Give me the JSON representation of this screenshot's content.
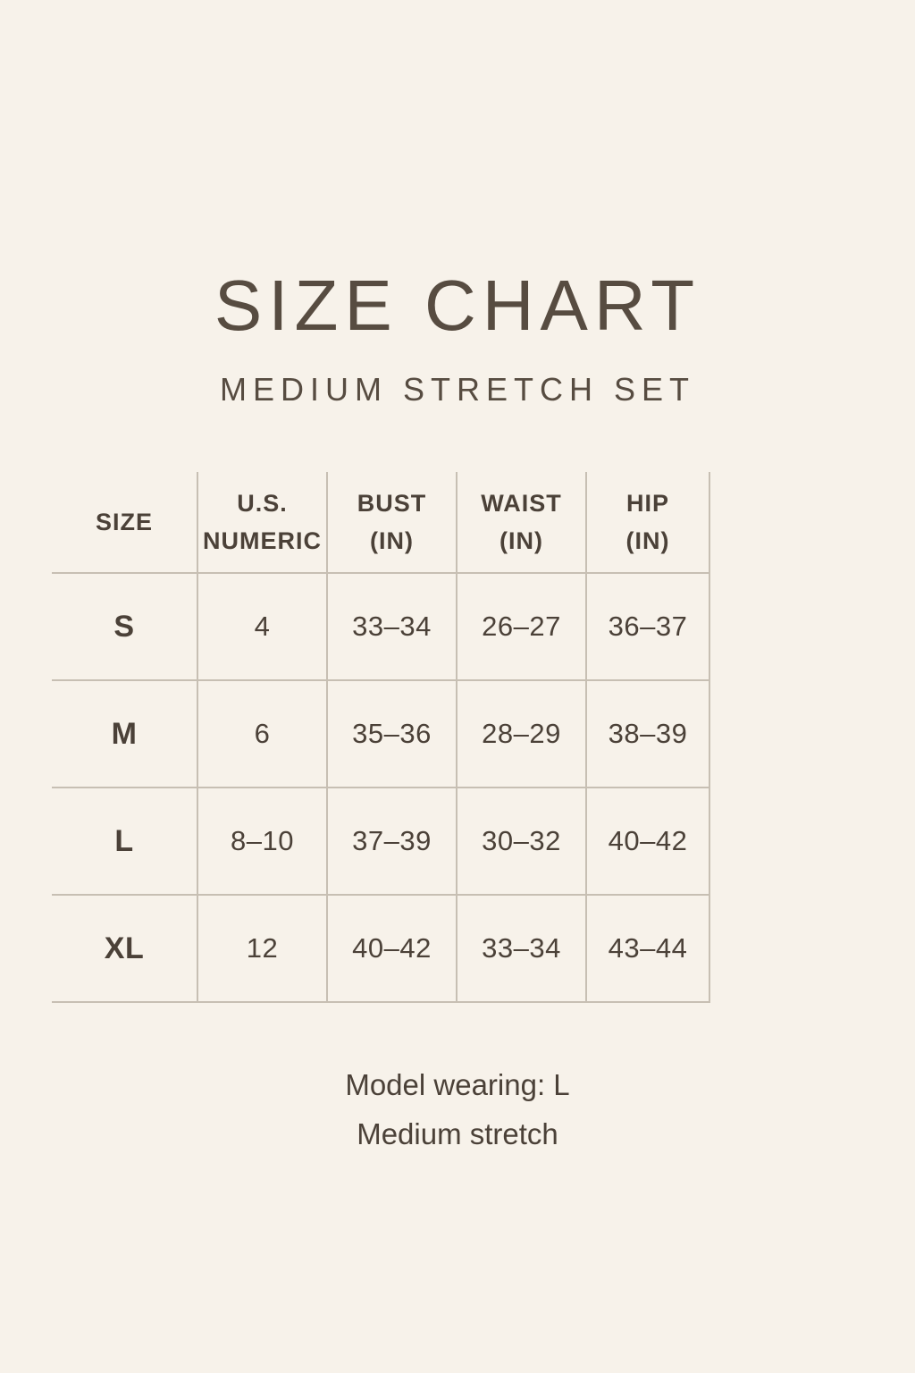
{
  "page": {
    "background_color": "#f7f2ea",
    "text_color": "#4b4138",
    "line_color": "#c7bfb3"
  },
  "header": {
    "title": "SIZE CHART",
    "subtitle": "MEDIUM STRETCH SET"
  },
  "table": {
    "columns": [
      {
        "label": "SIZE",
        "sub": ""
      },
      {
        "label": "U.S.",
        "sub": "NUMERIC"
      },
      {
        "label": "BUST",
        "sub": "(IN)"
      },
      {
        "label": "WAIST",
        "sub": "(IN)"
      },
      {
        "label": "HIP",
        "sub": "(IN)"
      }
    ],
    "rows": [
      {
        "size": "S",
        "us_numeric": "4",
        "bust": "33–34",
        "waist": "26–27",
        "hip": "36–37"
      },
      {
        "size": "M",
        "us_numeric": "6",
        "bust": "35–36",
        "waist": "28–29",
        "hip": "38–39"
      },
      {
        "size": "L",
        "us_numeric": "8–10",
        "bust": "37–39",
        "waist": "30–32",
        "hip": "40–42"
      },
      {
        "size": "XL",
        "us_numeric": "12",
        "bust": "40–42",
        "waist": "33–34",
        "hip": "43–44"
      }
    ]
  },
  "footer": {
    "model_note": "Model wearing: L",
    "stretch_note": "Medium stretch"
  }
}
